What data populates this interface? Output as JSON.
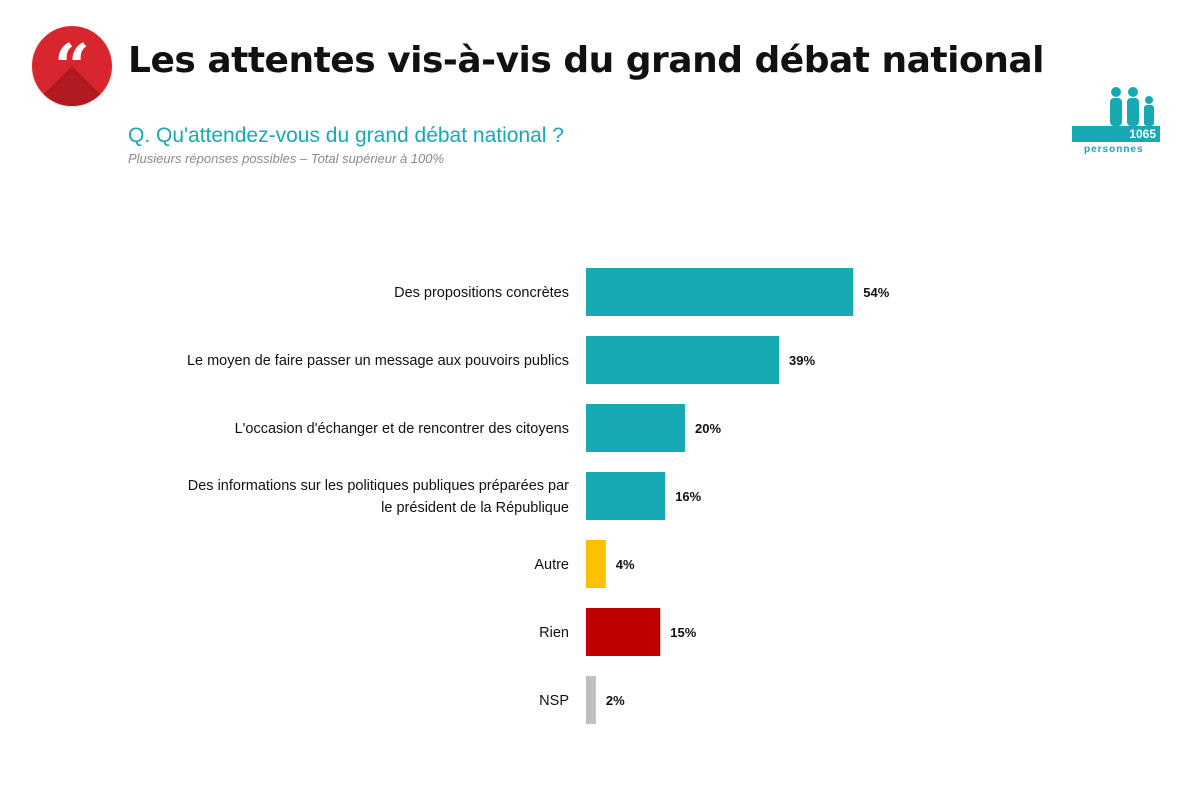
{
  "header": {
    "quote_icon": "quote-icon",
    "title": "Les attentes vis-à-vis du grand débat national",
    "question": "Q. Qu'attendez-vous du grand débat national ?",
    "note": "Plusieurs réponses possibles – Total supérieur à 100%"
  },
  "sample": {
    "icon": "people-icon",
    "count": "1065",
    "unit": "personnes"
  },
  "colors": {
    "accent": "#17a9b4",
    "brand_red": "#d8262e",
    "autre": "#ffc000",
    "rien": "#c00000",
    "nsp": "#bfbfbf"
  },
  "chart_data": {
    "type": "bar",
    "orientation": "horizontal",
    "title": "",
    "xlabel": "",
    "ylabel": "",
    "xlim": [
      0,
      60
    ],
    "grid": false,
    "legend": "none",
    "value_suffix": "%",
    "categories": [
      "Des propositions concrètes",
      "Le moyen de faire passer un message aux pouvoirs publics",
      "L'occasion d'échanger et de rencontrer des citoyens",
      "Des informations sur les politiques publiques préparées par le président de la République",
      "Autre",
      "Rien",
      "NSP"
    ],
    "category_lines": [
      [
        "Des propositions concrètes"
      ],
      [
        "Le moyen de faire passer un message aux pouvoirs publics"
      ],
      [
        "L'occasion d'échanger et de rencontrer des citoyens"
      ],
      [
        "Des informations sur les politiques publiques préparées par",
        "le président de la République"
      ],
      [
        "Autre"
      ],
      [
        "Rien"
      ],
      [
        "NSP"
      ]
    ],
    "values": [
      54,
      39,
      20,
      16,
      4,
      15,
      2
    ],
    "value_labels": [
      "54%",
      "39%",
      "20%",
      "16%",
      "4%",
      "15%",
      "2%"
    ],
    "colors": [
      "#17a9b4",
      "#17a9b4",
      "#17a9b4",
      "#17a9b4",
      "#ffc000",
      "#c00000",
      "#bfbfbf"
    ]
  }
}
